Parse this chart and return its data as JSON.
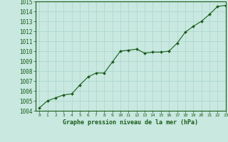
{
  "x": [
    0,
    1,
    2,
    3,
    4,
    5,
    6,
    7,
    8,
    9,
    10,
    11,
    12,
    13,
    14,
    15,
    16,
    17,
    18,
    19,
    20,
    21,
    22,
    23
  ],
  "y": [
    1004.3,
    1005.0,
    1005.3,
    1005.6,
    1005.7,
    1006.6,
    1007.4,
    1007.8,
    1007.8,
    1008.9,
    1010.0,
    1010.1,
    1010.2,
    1009.8,
    1009.9,
    1009.9,
    1010.0,
    1010.8,
    1011.9,
    1012.5,
    1013.0,
    1013.7,
    1014.5,
    1014.6
  ],
  "line_color": "#1a5c1a",
  "marker_color": "#1a5c1a",
  "bg_color": "#c8e8e0",
  "grid_color": "#b0d8d0",
  "xlabel": "Graphe pression niveau de la mer (hPa)",
  "xlabel_color": "#1a5c1a",
  "tick_color": "#1a5c1a",
  "ylim": [
    1004,
    1015
  ],
  "xlim": [
    -0.5,
    23
  ],
  "yticks": [
    1004,
    1005,
    1006,
    1007,
    1008,
    1009,
    1010,
    1011,
    1012,
    1013,
    1014,
    1015
  ],
  "xticks": [
    0,
    1,
    2,
    3,
    4,
    5,
    6,
    7,
    8,
    9,
    10,
    11,
    12,
    13,
    14,
    15,
    16,
    17,
    18,
    19,
    20,
    21,
    22,
    23
  ],
  "xtick_labels": [
    "0",
    "1",
    "2",
    "3",
    "4",
    "5",
    "6",
    "7",
    "8",
    "9",
    "10",
    "11",
    "12",
    "13",
    "14",
    "15",
    "16",
    "17",
    "18",
    "19",
    "20",
    "21",
    "22",
    "23"
  ]
}
